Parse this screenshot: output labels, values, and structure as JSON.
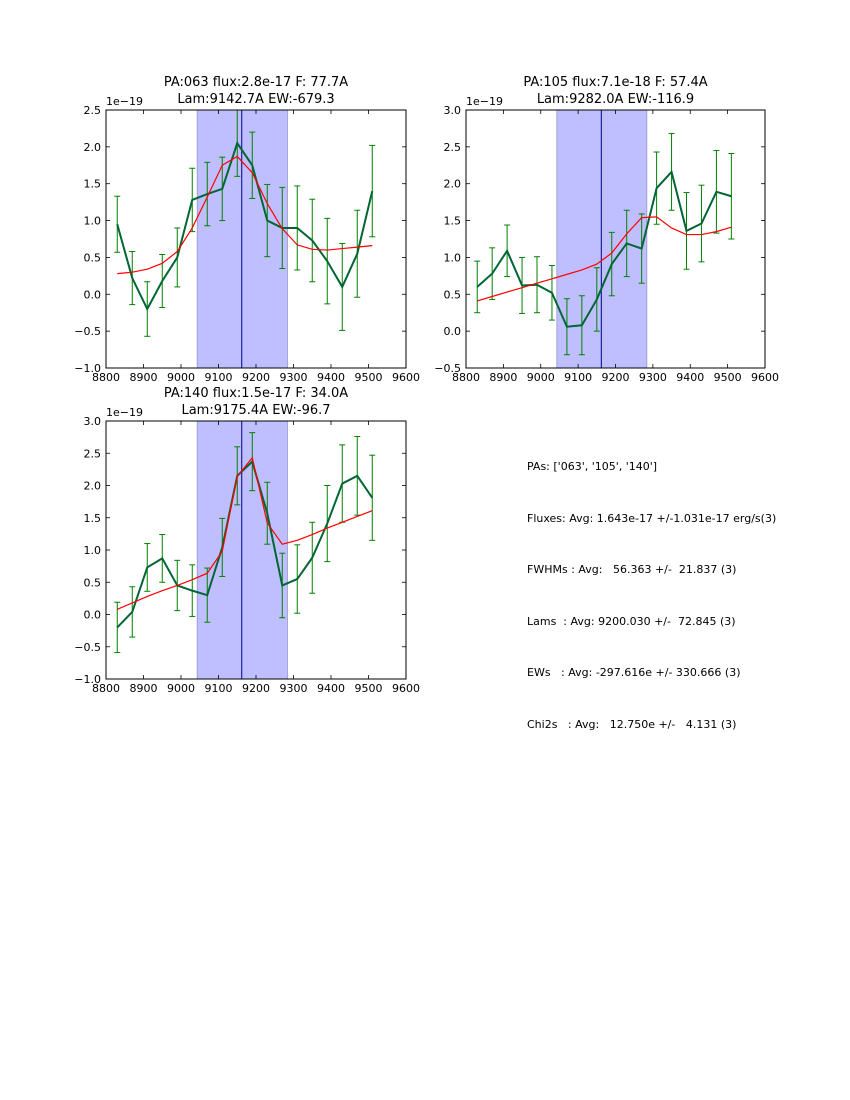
{
  "chart_data": [
    {
      "type": "line",
      "title": "PA:063 flux:2.8e-17 F: 77.7A",
      "subtitle": "Lam:9142.7A EW:-679.3",
      "offset_label": "1e−19",
      "xlim": [
        8800,
        9600
      ],
      "ylim": [
        -1.0,
        2.5
      ],
      "xticks": [
        8800,
        8900,
        9000,
        9100,
        9200,
        9300,
        9400,
        9500,
        9600
      ],
      "yticks": [
        -1.0,
        -0.5,
        0.0,
        0.5,
        1.0,
        1.5,
        2.0,
        2.5
      ],
      "ytick_labels": [
        "−1.0",
        "−0.5",
        "0.0",
        "0.5",
        "1.0",
        "1.5",
        "2.0",
        "2.5"
      ],
      "band": [
        9043,
        9284
      ],
      "vline": 9162,
      "data": {
        "x": [
          8830,
          8870,
          8910,
          8950,
          8990,
          9030,
          9070,
          9110,
          9150,
          9190,
          9230,
          9270,
          9310,
          9350,
          9390,
          9430,
          9470,
          9510
        ],
        "y": [
          0.95,
          0.22,
          -0.2,
          0.18,
          0.5,
          1.28,
          1.36,
          1.43,
          2.05,
          1.75,
          1.0,
          0.9,
          0.9,
          0.73,
          0.45,
          0.1,
          0.55,
          1.4
        ],
        "err": [
          0.38,
          0.36,
          0.37,
          0.36,
          0.4,
          0.43,
          0.43,
          0.43,
          0.45,
          0.45,
          0.49,
          0.55,
          0.57,
          0.56,
          0.58,
          0.59,
          0.59,
          0.62
        ]
      },
      "fit": {
        "x": [
          8830,
          8870,
          8910,
          8950,
          8990,
          9030,
          9070,
          9110,
          9150,
          9190,
          9230,
          9270,
          9310,
          9350,
          9390,
          9430,
          9470,
          9510
        ],
        "y": [
          0.28,
          0.3,
          0.34,
          0.42,
          0.58,
          0.9,
          1.32,
          1.75,
          1.87,
          1.65,
          1.23,
          0.89,
          0.67,
          0.61,
          0.6,
          0.62,
          0.64,
          0.66
        ]
      },
      "colors": {
        "data": "#006633",
        "err": "#008000",
        "fit": "#ff0000",
        "band": "#bfbfff",
        "vline": "#000080"
      }
    },
    {
      "type": "line",
      "title": "PA:105 flux:7.1e-18 F: 57.4A",
      "subtitle": "Lam:9282.0A EW:-116.9",
      "offset_label": "1e−19",
      "xlim": [
        8800,
        9600
      ],
      "ylim": [
        -0.5,
        3.0
      ],
      "xticks": [
        8800,
        8900,
        9000,
        9100,
        9200,
        9300,
        9400,
        9500,
        9600
      ],
      "yticks": [
        -0.5,
        0.0,
        0.5,
        1.0,
        1.5,
        2.0,
        2.5,
        3.0
      ],
      "ytick_labels": [
        "−0.5",
        "0.0",
        "0.5",
        "1.0",
        "1.5",
        "2.0",
        "2.5",
        "3.0"
      ],
      "band": [
        9043,
        9284
      ],
      "vline": 9162,
      "data": {
        "x": [
          8830,
          8870,
          8910,
          8950,
          8990,
          9030,
          9070,
          9110,
          9150,
          9190,
          9230,
          9270,
          9310,
          9350,
          9390,
          9430,
          9470,
          9510
        ],
        "y": [
          0.6,
          0.78,
          1.09,
          0.62,
          0.63,
          0.52,
          0.06,
          0.08,
          0.43,
          0.91,
          1.19,
          1.12,
          1.94,
          2.16,
          1.36,
          1.46,
          1.89,
          1.83
        ],
        "err": [
          0.35,
          0.35,
          0.35,
          0.38,
          0.38,
          0.37,
          0.38,
          0.4,
          0.43,
          0.43,
          0.45,
          0.47,
          0.49,
          0.52,
          0.52,
          0.52,
          0.56,
          0.58
        ]
      },
      "fit": {
        "x": [
          8830,
          8870,
          8910,
          8950,
          8990,
          9030,
          9070,
          9110,
          9150,
          9190,
          9230,
          9270,
          9310,
          9350,
          9390,
          9430,
          9470,
          9510
        ],
        "y": [
          0.41,
          0.47,
          0.53,
          0.59,
          0.65,
          0.71,
          0.77,
          0.83,
          0.91,
          1.06,
          1.32,
          1.54,
          1.55,
          1.4,
          1.31,
          1.31,
          1.35,
          1.41
        ]
      },
      "colors": {
        "data": "#006633",
        "err": "#008000",
        "fit": "#ff0000",
        "band": "#bfbfff",
        "vline": "#000080"
      }
    },
    {
      "type": "line",
      "title": "PA:140 flux:1.5e-17 F: 34.0A",
      "subtitle": "Lam:9175.4A EW:-96.7",
      "offset_label": "1e−19",
      "xlim": [
        8800,
        9600
      ],
      "ylim": [
        -1.0,
        3.0
      ],
      "xticks": [
        8800,
        8900,
        9000,
        9100,
        9200,
        9300,
        9400,
        9500,
        9600
      ],
      "yticks": [
        -1.0,
        -0.5,
        0.0,
        0.5,
        1.0,
        1.5,
        2.0,
        2.5,
        3.0
      ],
      "ytick_labels": [
        "−1.0",
        "−0.5",
        "0.0",
        "0.5",
        "1.0",
        "1.5",
        "2.0",
        "2.5",
        "3.0"
      ],
      "band": [
        9043,
        9284
      ],
      "vline": 9162,
      "data": {
        "x": [
          8830,
          8870,
          8910,
          8950,
          8990,
          9030,
          9070,
          9110,
          9150,
          9190,
          9230,
          9270,
          9310,
          9350,
          9390,
          9430,
          9470,
          9510
        ],
        "y": [
          -0.2,
          0.04,
          0.73,
          0.87,
          0.45,
          0.37,
          0.3,
          1.04,
          2.15,
          2.37,
          1.57,
          0.45,
          0.55,
          0.88,
          1.41,
          2.03,
          2.15,
          1.81
        ],
        "err": [
          0.39,
          0.39,
          0.37,
          0.37,
          0.39,
          0.4,
          0.42,
          0.45,
          0.45,
          0.45,
          0.48,
          0.5,
          0.53,
          0.55,
          0.59,
          0.6,
          0.61,
          0.66
        ]
      },
      "fit": {
        "x": [
          8830,
          8870,
          8910,
          8950,
          8990,
          9030,
          9070,
          9110,
          9150,
          9190,
          9230,
          9270,
          9310,
          9350,
          9390,
          9430,
          9470,
          9510
        ],
        "y": [
          0.08,
          0.18,
          0.28,
          0.37,
          0.45,
          0.54,
          0.64,
          0.98,
          2.14,
          2.43,
          1.42,
          1.09,
          1.15,
          1.24,
          1.34,
          1.43,
          1.52,
          1.61
        ]
      },
      "colors": {
        "data": "#006633",
        "err": "#008000",
        "fit": "#ff0000",
        "band": "#bfbfff",
        "vline": "#000080"
      }
    }
  ],
  "summary": {
    "pas": "PAs: ['063', '105', '140']",
    "fluxes": "Fluxes: Avg: 1.643e-17 +/-1.031e-17 erg/s(3)",
    "fwhms": "FWHMs : Avg:   56.363 +/-  21.837 (3)",
    "lams": "Lams  : Avg: 9200.030 +/-  72.845 (3)",
    "ews": "EWs   : Avg: -297.616e +/- 330.666 (3)",
    "chi2s": "Chi2s   : Avg:   12.750e +/-   4.131 (3)"
  }
}
